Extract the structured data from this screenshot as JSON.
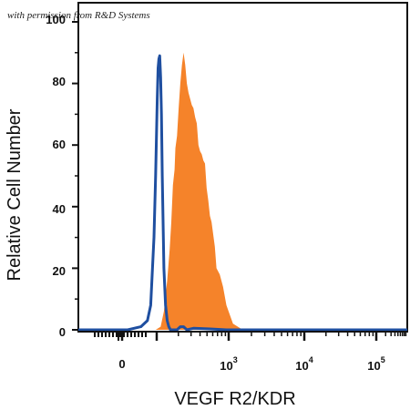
{
  "watermark": "with permission from R&D Systems",
  "chart_data": {
    "type": "area",
    "title": "",
    "xlabel": "VEGF R2/KDR",
    "ylabel": "Relative Cell Number",
    "x_scale": "biexponential",
    "ylim": [
      0,
      100
    ],
    "y_ticks": [
      "0",
      "20",
      "40",
      "60",
      "80",
      "100"
    ],
    "x_ticks": [
      {
        "base": "0",
        "exp": ""
      },
      {
        "base": "10",
        "exp": "3"
      },
      {
        "base": "10",
        "exp": "4"
      },
      {
        "base": "10",
        "exp": "5"
      }
    ],
    "colors": {
      "filled": "#f5832a",
      "outline": "#1f4fa0"
    },
    "series": [
      {
        "style": "filled",
        "x_channel": [
          0.47,
          0.5,
          0.52,
          0.54,
          0.555,
          0.565,
          0.575,
          0.585,
          0.59,
          0.6,
          0.61,
          0.62,
          0.63,
          0.64,
          0.65,
          0.66,
          0.67,
          0.68,
          0.69,
          0.7,
          0.71,
          0.72,
          0.73,
          0.74,
          0.75,
          0.76,
          0.77,
          0.78,
          0.79,
          0.8,
          0.81,
          0.82,
          0.83,
          0.84,
          0.86,
          0.88,
          0.9,
          0.92,
          0.94,
          0.97,
          1.0,
          1.05
        ],
        "values": [
          0,
          1,
          6,
          16,
          26,
          35,
          47,
          52,
          59,
          63,
          72,
          80,
          86,
          90,
          86,
          80,
          77,
          75,
          73,
          72,
          69,
          67,
          60,
          58,
          57,
          55,
          54,
          46,
          42,
          37,
          35,
          31,
          27,
          20,
          18,
          14,
          8,
          5,
          2,
          1,
          0,
          0
        ]
      },
      {
        "style": "outline",
        "x_channel": [
          0.0,
          0.3,
          0.38,
          0.42,
          0.44,
          0.46,
          0.47,
          0.48,
          0.485,
          0.49,
          0.495,
          0.5,
          0.505,
          0.51,
          0.515,
          0.52,
          0.53,
          0.54,
          0.55,
          0.56,
          0.6,
          0.62,
          0.64,
          0.66,
          0.7,
          0.8,
          0.9,
          1.0,
          1.3,
          1.6,
          2.0
        ],
        "values": [
          0,
          0,
          1,
          3,
          8,
          30,
          50,
          75,
          85,
          88,
          89,
          82,
          70,
          50,
          35,
          20,
          8,
          3,
          1,
          0,
          0,
          1,
          1,
          0,
          0.5,
          0.3,
          0,
          0,
          0,
          0,
          0
        ]
      }
    ]
  }
}
